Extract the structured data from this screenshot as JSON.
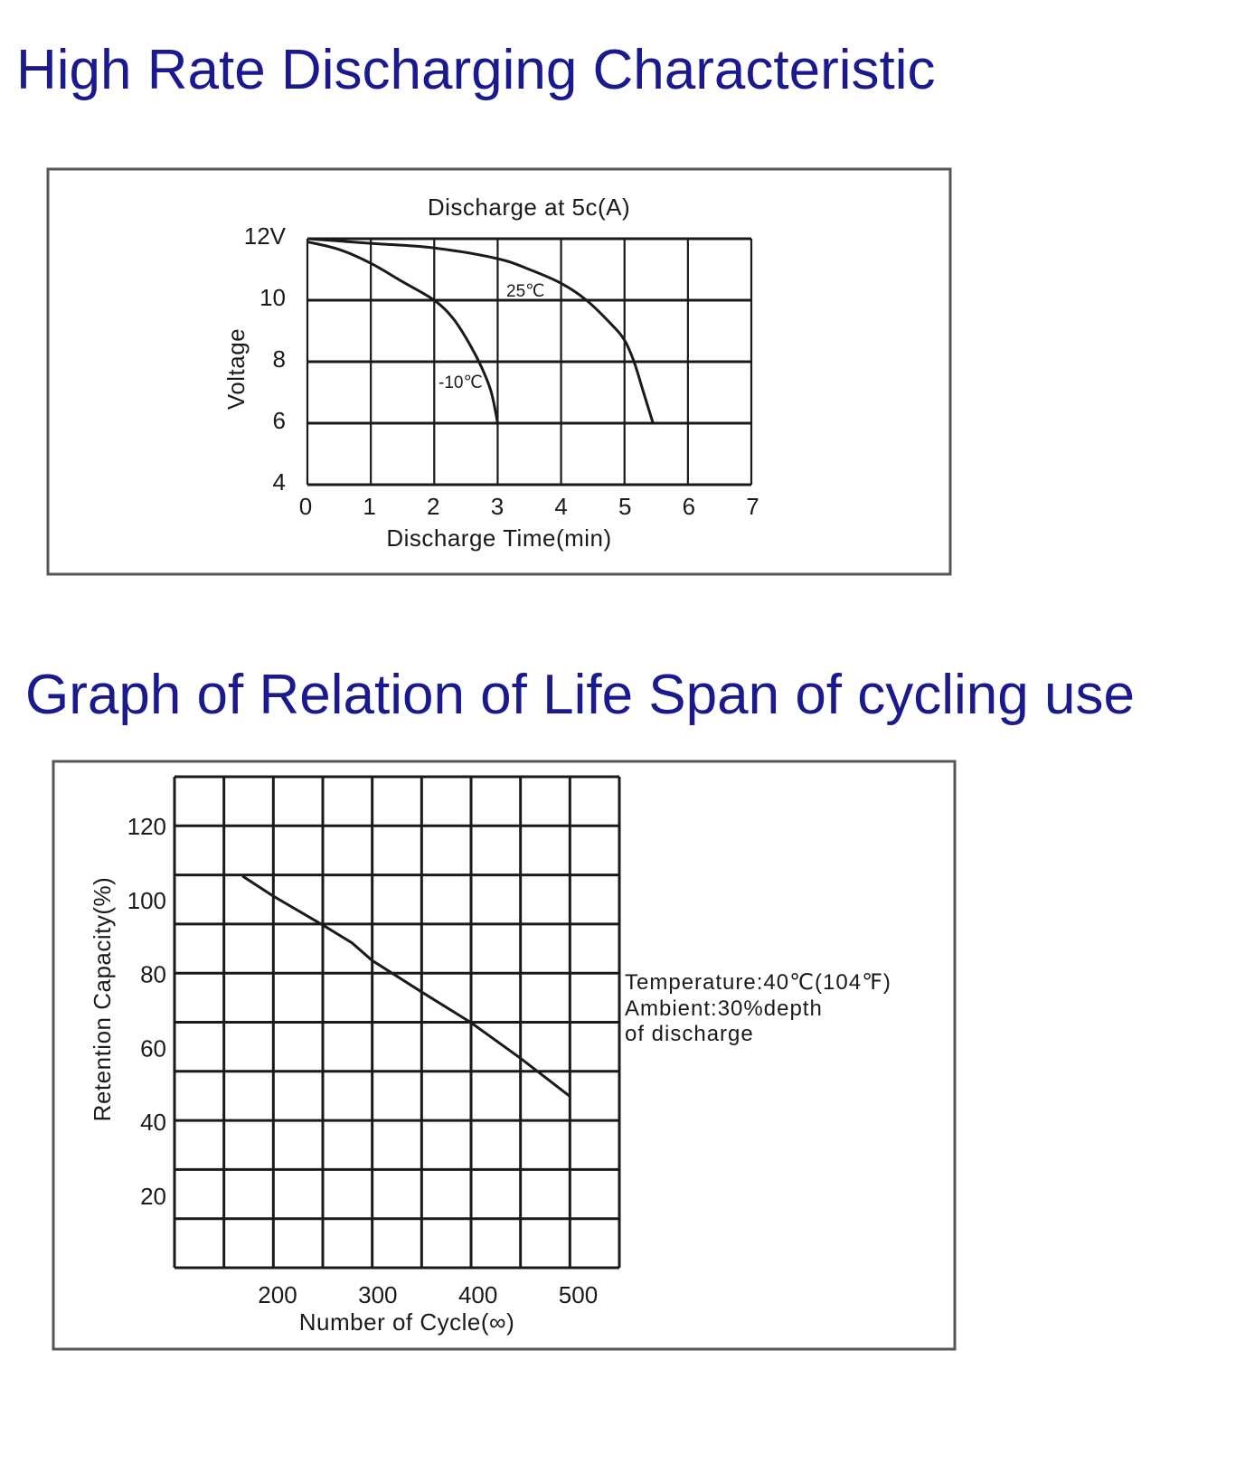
{
  "titles": {
    "section1": "High Rate Discharging Characteristic",
    "section2": "Graph of Relation of Life Span of cycling use"
  },
  "colors": {
    "title": "#1a1a8e",
    "frame": "#555555",
    "ink": "#1a1a1a"
  },
  "chart_data": [
    {
      "type": "line",
      "title": "Discharge at 5c(A)",
      "xlabel": "Discharge Time(min)",
      "ylabel": "Voltage",
      "xlim": [
        0,
        7
      ],
      "ylim": [
        4,
        12
      ],
      "x_ticks": [
        "0",
        "1",
        "2",
        "3",
        "4",
        "5",
        "6",
        "7"
      ],
      "y_ticks": [
        "12V",
        "10",
        "8",
        "6",
        "4"
      ],
      "y_tick_values": [
        12,
        10,
        8,
        6,
        4
      ],
      "grid": true,
      "series": [
        {
          "name": "25℃",
          "label": "25℃",
          "x": [
            0,
            1,
            2,
            3,
            3.5,
            4,
            4.4,
            4.8,
            5.0,
            5.15,
            5.3,
            5.45
          ],
          "y": [
            12,
            11.85,
            11.7,
            11.35,
            11.0,
            10.55,
            10.0,
            9.2,
            8.7,
            8.0,
            7.0,
            6.0
          ]
        },
        {
          "name": "-10℃",
          "label": "-10℃",
          "x": [
            0,
            0.5,
            1,
            1.5,
            2,
            2.3,
            2.55,
            2.75,
            2.9,
            3.0
          ],
          "y": [
            11.9,
            11.65,
            11.2,
            10.6,
            10.0,
            9.4,
            8.6,
            7.8,
            7.0,
            6.0
          ]
        }
      ]
    },
    {
      "type": "line",
      "title": "",
      "xlabel": "Number of Cycle(∞)",
      "ylabel": "Retention Capacity(%)",
      "xlim": [
        100,
        550
      ],
      "ylim": [
        0,
        133
      ],
      "x_ticks": [
        "200",
        "300",
        "400",
        "500"
      ],
      "x_tick_values": [
        200,
        300,
        400,
        500
      ],
      "y_ticks": [
        "120",
        "100",
        "80",
        "60",
        "40",
        "20"
      ],
      "y_tick_values": [
        120,
        100,
        80,
        60,
        40,
        20
      ],
      "grid": true,
      "annotation": [
        "Temperature:40℃(104℉)",
        "Ambient:30%depth",
        "of discharge"
      ],
      "series": [
        {
          "name": "Retention Capacity",
          "x": [
            169,
            200,
            250,
            280,
            300,
            350,
            400,
            450,
            500
          ],
          "y": [
            106.6,
            101.2,
            93.4,
            88.5,
            83.8,
            75.3,
            67.0,
            57.4,
            47.1
          ]
        }
      ]
    }
  ]
}
